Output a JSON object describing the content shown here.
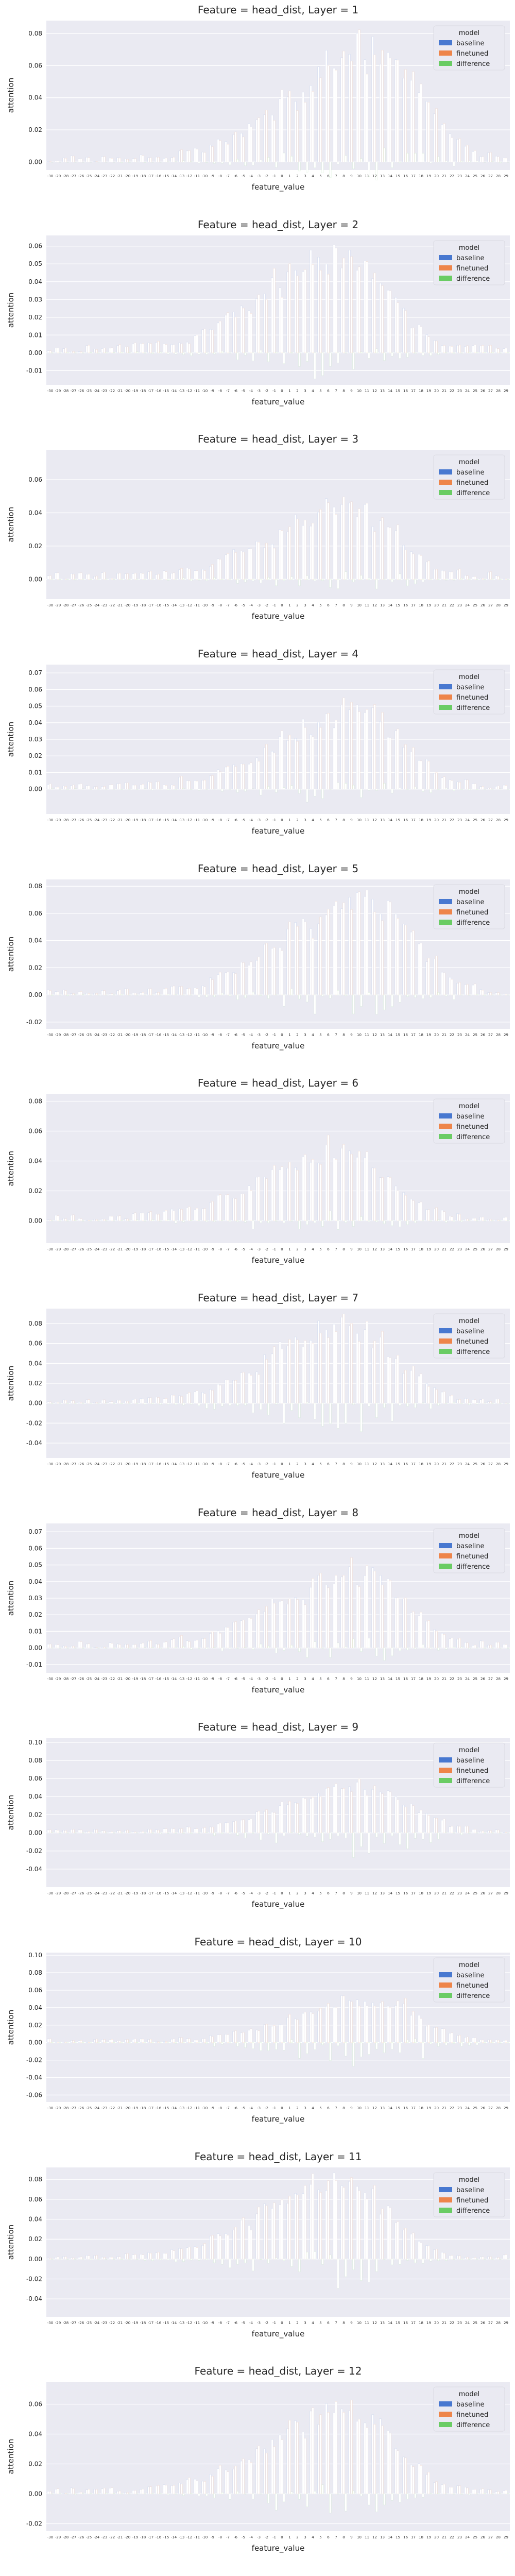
{
  "figure": {
    "hue_title": "model",
    "xlabel": "feature_value",
    "ylabel": "attention",
    "legend_placement": "top-right",
    "grid": true,
    "background": "#eaeaf2"
  },
  "series": [
    {
      "name": "baseline",
      "color": "#4878d0"
    },
    {
      "name": "finetuned",
      "color": "#ee854a"
    },
    {
      "name": "difference",
      "color": "#6acc64"
    }
  ],
  "chart_data": [
    {
      "type": "bar",
      "title": "Feature = head_dist, Layer = 1",
      "xlabel": "feature_value",
      "ylabel": "attention",
      "ylim": [
        -0.005,
        0.088
      ],
      "yticks": [
        0.0,
        0.02,
        0.04,
        0.06,
        0.08
      ],
      "peak": 0.082,
      "neg": 0.002
    },
    {
      "type": "bar",
      "title": "Feature = head_dist, Layer = 2",
      "xlabel": "feature_value",
      "ylabel": "attention",
      "ylim": [
        -0.018,
        0.066
      ],
      "yticks": [
        -0.01,
        0.0,
        0.01,
        0.02,
        0.03,
        0.04,
        0.05,
        0.06
      ],
      "peak": 0.062,
      "neg": -0.012
    },
    {
      "type": "bar",
      "title": "Feature = head_dist, Layer = 3",
      "xlabel": "feature_value",
      "ylabel": "attention",
      "ylim": [
        -0.012,
        0.078
      ],
      "yticks": [
        0.0,
        0.02,
        0.04,
        0.06
      ],
      "peak": 0.049,
      "neg": -0.006
    },
    {
      "type": "bar",
      "title": "Feature = head_dist, Layer = 4",
      "xlabel": "feature_value",
      "ylabel": "attention",
      "ylim": [
        -0.015,
        0.075
      ],
      "yticks": [
        0.0,
        0.01,
        0.02,
        0.03,
        0.04,
        0.05,
        0.06,
        0.07
      ],
      "peak": 0.052,
      "neg": -0.007
    },
    {
      "type": "bar",
      "title": "Feature = head_dist, Layer = 5",
      "xlabel": "feature_value",
      "ylabel": "attention",
      "ylim": [
        -0.025,
        0.085
      ],
      "yticks": [
        -0.02,
        0.0,
        0.02,
        0.04,
        0.06,
        0.08
      ],
      "peak": 0.081,
      "neg": -0.021
    },
    {
      "type": "bar",
      "title": "Feature = head_dist, Layer = 6",
      "xlabel": "feature_value",
      "ylabel": "attention",
      "ylim": [
        -0.015,
        0.085
      ],
      "yticks": [
        0.0,
        0.02,
        0.04,
        0.06,
        0.08
      ],
      "peak": 0.053,
      "neg": -0.01
    },
    {
      "type": "bar",
      "title": "Feature = head_dist, Layer = 7",
      "xlabel": "feature_value",
      "ylabel": "attention",
      "ylim": [
        -0.055,
        0.095
      ],
      "yticks": [
        -0.04,
        -0.02,
        0.0,
        0.02,
        0.04,
        0.06,
        0.08
      ],
      "peak": 0.088,
      "neg": -0.047
    },
    {
      "type": "bar",
      "title": "Feature = head_dist, Layer = 8",
      "xlabel": "feature_value",
      "ylabel": "attention",
      "ylim": [
        -0.015,
        0.075
      ],
      "yticks": [
        -0.01,
        0.0,
        0.01,
        0.02,
        0.03,
        0.04,
        0.05,
        0.06,
        0.07
      ],
      "peak": 0.052,
      "neg": -0.008
    },
    {
      "type": "bar",
      "title": "Feature = head_dist, Layer = 9",
      "xlabel": "feature_value",
      "ylabel": "attention",
      "ylim": [
        -0.06,
        0.105
      ],
      "yticks": [
        -0.04,
        -0.02,
        0.0,
        0.02,
        0.04,
        0.06,
        0.08,
        0.1
      ],
      "peak": 0.056,
      "neg": -0.042
    },
    {
      "type": "bar",
      "title": "Feature = head_dist, Layer = 10",
      "xlabel": "feature_value",
      "ylabel": "attention",
      "ylim": [
        -0.068,
        0.103
      ],
      "yticks": [
        -0.06,
        -0.04,
        -0.02,
        0.0,
        0.02,
        0.04,
        0.06,
        0.08,
        0.1
      ],
      "peak": 0.055,
      "neg": -0.06
    },
    {
      "type": "bar",
      "title": "Feature = head_dist, Layer = 11",
      "xlabel": "feature_value",
      "ylabel": "attention",
      "ylim": [
        -0.058,
        0.092
      ],
      "yticks": [
        -0.04,
        -0.02,
        0.0,
        0.02,
        0.04,
        0.06,
        0.08
      ],
      "peak": 0.09,
      "neg": -0.04
    },
    {
      "type": "bar",
      "title": "Feature = head_dist, Layer = 12",
      "xlabel": "feature_value",
      "ylabel": "attention",
      "ylim": [
        -0.025,
        0.075
      ],
      "yticks": [
        -0.02,
        0.0,
        0.02,
        0.04,
        0.06
      ],
      "peak": 0.063,
      "neg": -0.018
    }
  ]
}
